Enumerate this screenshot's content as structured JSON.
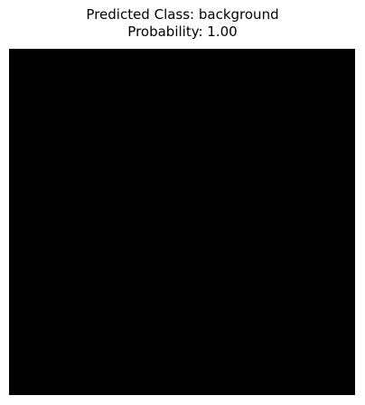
{
  "title": {
    "line1": "Predicted Class: background",
    "line2": "Probability: 1.00"
  },
  "image": {
    "fill_color": "#000000"
  }
}
